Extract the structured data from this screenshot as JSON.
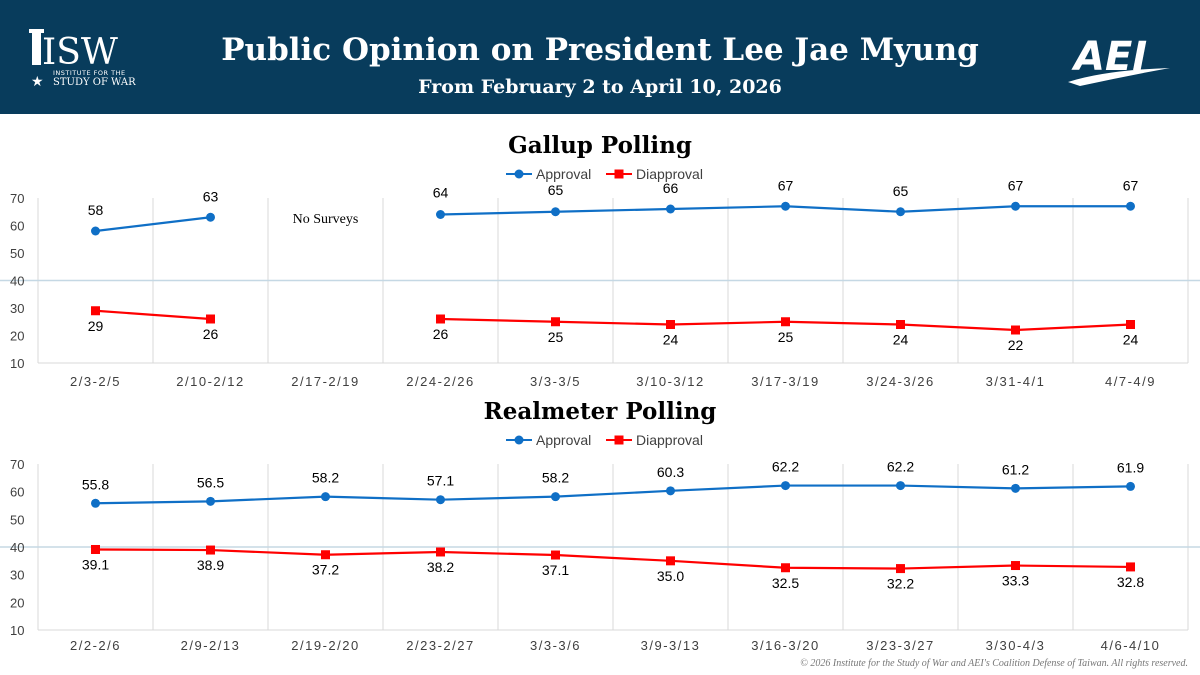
{
  "header": {
    "title": "Public Opinion on President Lee Jae Myung",
    "subtitle": "From February 2 to April 10, 2026",
    "isw_logo_text": "ISW",
    "isw_logo_sub1": "INSTITUTE FOR THE",
    "isw_logo_sub2": "STUDY OF WAR",
    "aei_logo_text": "AEI"
  },
  "colors": {
    "header_bg": "#083c5c",
    "approval": "#0f6fc6",
    "disapproval": "#ff0000",
    "grid": "#d9d9d9",
    "refline": "#c5d8e4"
  },
  "footer": {
    "copyright": "© 2026 Institute for the Study of War and AEI's Coalition Defense of Taiwan. All rights reserved."
  },
  "chart_data": [
    {
      "type": "line",
      "title": "Gallup Polling",
      "categories": [
        "2/3-2/5",
        "2/10-2/12",
        "2/17-2/19",
        "2/24-2/26",
        "3/3-3/5",
        "3/10-3/12",
        "3/17-3/19",
        "3/24-3/26",
        "3/31-4/1",
        "4/7-4/9"
      ],
      "series": [
        {
          "name": "Approval",
          "values": [
            58,
            63,
            null,
            64,
            65,
            66,
            67,
            65,
            67,
            67
          ],
          "labels": [
            "58",
            "63",
            "",
            "64",
            "65",
            "66",
            "67",
            "65",
            "67",
            "67"
          ]
        },
        {
          "name": "Diapproval",
          "values": [
            29,
            26,
            null,
            26,
            25,
            24,
            25,
            24,
            22,
            24
          ],
          "labels": [
            "29",
            "26",
            "",
            "26",
            "25",
            "24",
            "25",
            "24",
            "22",
            "24"
          ]
        }
      ],
      "annotation": {
        "category": "2/17-2/19",
        "text": "No Surveys"
      },
      "yticks": [
        "10",
        "20",
        "30",
        "40",
        "50",
        "60",
        "70"
      ],
      "ylim": [
        10,
        70
      ],
      "reference_line": 40,
      "legend_position": "top-center",
      "grid": "vertical"
    },
    {
      "type": "line",
      "title": "Realmeter Polling",
      "categories": [
        "2/2-2/6",
        "2/9-2/13",
        "2/19-2/20",
        "2/23-2/27",
        "3/3-3/6",
        "3/9-3/13",
        "3/16-3/20",
        "3/23-3/27",
        "3/30-4/3",
        "4/6-4/10"
      ],
      "series": [
        {
          "name": "Approval",
          "values": [
            55.8,
            56.5,
            58.2,
            57.1,
            58.2,
            60.3,
            62.2,
            62.2,
            61.2,
            61.9
          ],
          "labels": [
            "55.8",
            "56.5",
            "58.2",
            "57.1",
            "58.2",
            "60.3",
            "62.2",
            "62.2",
            "61.2",
            "61.9"
          ]
        },
        {
          "name": "Diapproval",
          "values": [
            39.1,
            38.9,
            37.2,
            38.2,
            37.1,
            35.0,
            32.5,
            32.2,
            33.3,
            32.8
          ],
          "labels": [
            "39.1",
            "38.9",
            "37.2",
            "38.2",
            "37.1",
            "35.0",
            "32.5",
            "32.2",
            "33.3",
            "32.8"
          ]
        }
      ],
      "yticks": [
        "10",
        "20",
        "30",
        "40",
        "50",
        "60",
        "70"
      ],
      "ylim": [
        10,
        70
      ],
      "reference_line": 40,
      "legend_position": "top-center",
      "grid": "vertical"
    }
  ]
}
